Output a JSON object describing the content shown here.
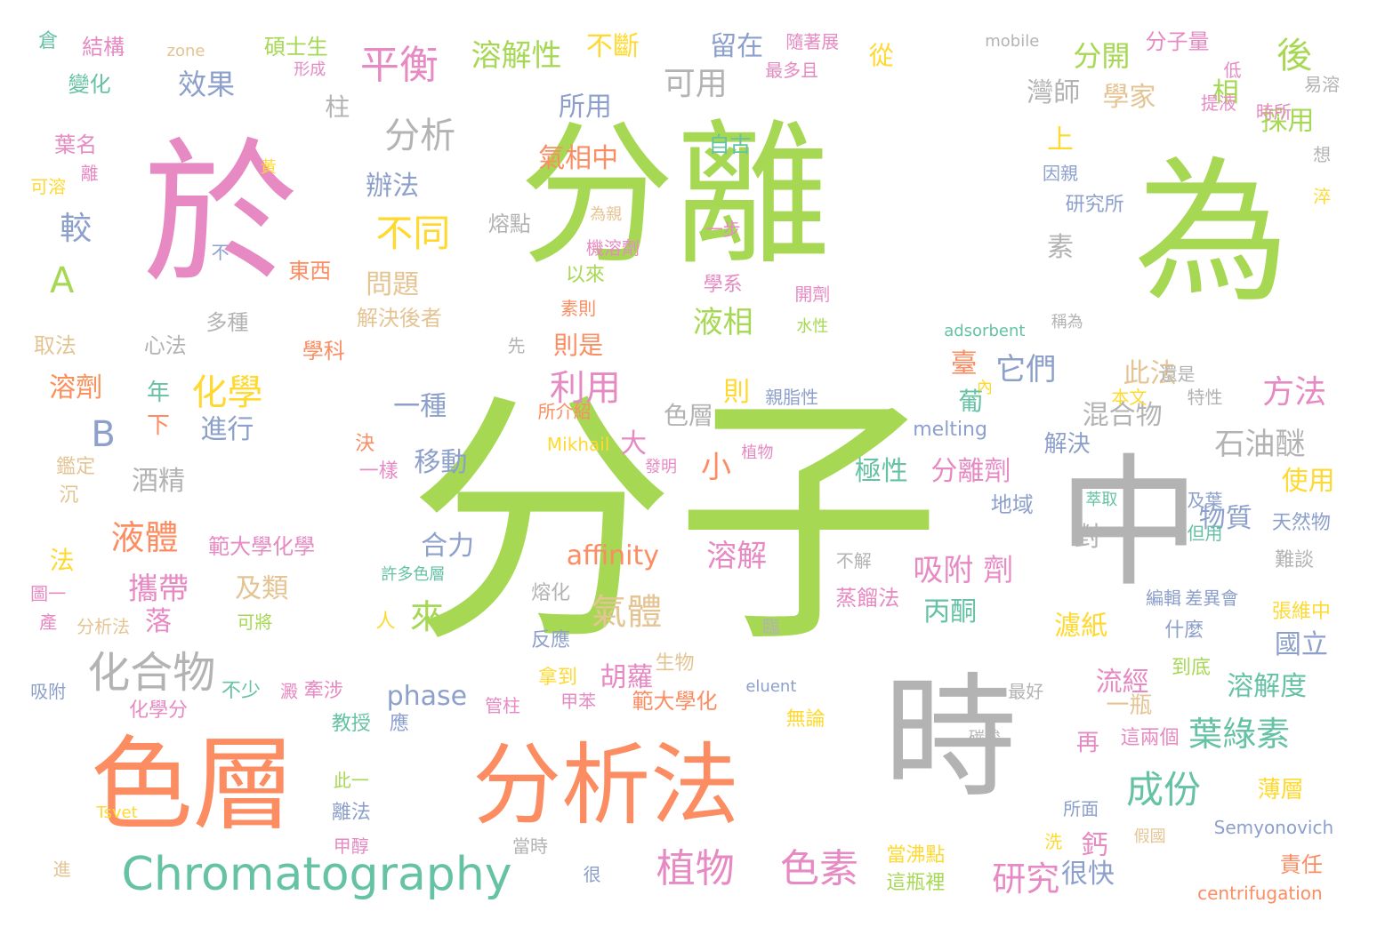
{
  "cloud": {
    "palette": {
      "green": "#a6d854",
      "pink": "#e78ac3",
      "orange": "#fc8d62",
      "gray": "#b3b3b3",
      "teal": "#66c2a5",
      "blue": "#8da0cb",
      "yellow": "#ffd92f",
      "tan": "#e5c494"
    },
    "words": [
      {
        "text": "分子",
        "color": "green"
      },
      {
        "text": "分離",
        "color": "green"
      },
      {
        "text": "於",
        "color": "pink"
      },
      {
        "text": "為",
        "color": "green"
      },
      {
        "text": "中",
        "color": "gray"
      },
      {
        "text": "時",
        "color": "gray"
      },
      {
        "text": "色層",
        "color": "orange"
      },
      {
        "text": "分析法",
        "color": "orange"
      },
      {
        "text": "Chromatography",
        "color": "teal"
      },
      {
        "text": "平衡",
        "color": "pink"
      },
      {
        "text": "溶解性",
        "color": "green"
      },
      {
        "text": "不斷",
        "color": "yellow"
      },
      {
        "text": "留在",
        "color": "blue"
      },
      {
        "text": "分析",
        "color": "gray"
      },
      {
        "text": "效果",
        "color": "blue"
      },
      {
        "text": "可用",
        "color": "gray"
      },
      {
        "text": "所用",
        "color": "blue"
      },
      {
        "text": "後",
        "color": "green"
      },
      {
        "text": "分開",
        "color": "green"
      },
      {
        "text": "分子量",
        "color": "pink"
      },
      {
        "text": "學家",
        "color": "tan"
      },
      {
        "text": "灣師",
        "color": "gray"
      },
      {
        "text": "相",
        "color": "green"
      },
      {
        "text": "採用",
        "color": "green"
      },
      {
        "text": "不同",
        "color": "yellow"
      },
      {
        "text": "較",
        "color": "blue"
      },
      {
        "text": "A",
        "color": "green"
      },
      {
        "text": "化學",
        "color": "yellow"
      },
      {
        "text": "B",
        "color": "blue"
      },
      {
        "text": "辦法",
        "color": "blue"
      },
      {
        "text": "氣相中",
        "color": "orange"
      },
      {
        "text": "利用",
        "color": "pink"
      },
      {
        "text": "液相",
        "color": "green"
      },
      {
        "text": "則是",
        "color": "orange"
      },
      {
        "text": "問題",
        "color": "tan"
      },
      {
        "text": "解決後者",
        "color": "tan"
      },
      {
        "text": "它們",
        "color": "blue"
      },
      {
        "text": "此法",
        "color": "tan"
      },
      {
        "text": "方法",
        "color": "pink"
      },
      {
        "text": "混合物",
        "color": "gray"
      },
      {
        "text": "石油醚",
        "color": "gray"
      },
      {
        "text": "色層",
        "color": "gray"
      },
      {
        "text": "液體",
        "color": "orange"
      },
      {
        "text": "攜帶",
        "color": "pink"
      },
      {
        "text": "酒精",
        "color": "gray"
      },
      {
        "text": "化合物",
        "color": "gray"
      },
      {
        "text": "氣體",
        "color": "tan"
      },
      {
        "text": "移動",
        "color": "blue"
      },
      {
        "text": "一種",
        "color": "blue"
      },
      {
        "text": "進行",
        "color": "blue"
      },
      {
        "text": "年",
        "color": "teal"
      },
      {
        "text": "下",
        "color": "orange"
      },
      {
        "text": "溶劑",
        "color": "yellow"
      },
      {
        "text": "合力",
        "color": "blue"
      },
      {
        "text": "affinity",
        "color": "orange"
      },
      {
        "text": "溶解",
        "color": "pink"
      },
      {
        "text": "吸附",
        "color": "pink"
      },
      {
        "text": "劑",
        "color": "pink"
      },
      {
        "text": "丙酮",
        "color": "teal"
      },
      {
        "text": "濾紙",
        "color": "yellow"
      },
      {
        "text": "分離劑",
        "color": "pink"
      },
      {
        "text": "極性",
        "color": "teal"
      },
      {
        "text": "物質",
        "color": "blue"
      },
      {
        "text": "使用",
        "color": "yellow"
      },
      {
        "text": "葉綠素",
        "color": "teal"
      },
      {
        "text": "成份",
        "color": "teal"
      },
      {
        "text": "溶解度",
        "color": "teal"
      },
      {
        "text": "國立",
        "color": "blue"
      },
      {
        "text": "植物",
        "color": "pink"
      },
      {
        "text": "色素",
        "color": "pink"
      },
      {
        "text": "研究",
        "color": "pink"
      },
      {
        "text": "胡蘿",
        "color": "pink"
      },
      {
        "text": "phase",
        "color": "blue"
      },
      {
        "text": "流經",
        "color": "pink"
      },
      {
        "text": "一瓶",
        "color": "tan"
      },
      {
        "text": "來",
        "color": "green"
      },
      {
        "text": "及類",
        "color": "tan"
      },
      {
        "text": "小",
        "color": "orange"
      },
      {
        "text": "大",
        "color": "pink"
      },
      {
        "text": "很快",
        "color": "blue"
      },
      {
        "text": "上",
        "color": "yellow"
      },
      {
        "text": "素",
        "color": "gray"
      },
      {
        "text": "臺",
        "color": "orange"
      },
      {
        "text": "則",
        "color": "yellow"
      },
      {
        "text": "melting",
        "color": "blue"
      },
      {
        "text": "解決",
        "color": "blue"
      },
      {
        "text": "薄層",
        "color": "yellow"
      },
      {
        "text": "責任",
        "color": "orange"
      },
      {
        "text": "centrifugation",
        "color": "orange"
      },
      {
        "text": "Semyonovich",
        "color": "blue"
      },
      {
        "text": "天然物",
        "color": "blue"
      },
      {
        "text": "張維中",
        "color": "yellow"
      },
      {
        "text": "蒸餾法",
        "color": "pink"
      },
      {
        "text": "範大學化學",
        "color": "pink"
      },
      {
        "text": "範大學化",
        "color": "orange"
      },
      {
        "text": "Mikhail",
        "color": "yellow"
      },
      {
        "text": "adsorbent",
        "color": "teal"
      },
      {
        "text": "eluent",
        "color": "blue"
      },
      {
        "text": "mobile",
        "color": "gray"
      },
      {
        "text": "zone",
        "color": "tan"
      },
      {
        "text": "Tsvet",
        "color": "yellow"
      },
      {
        "text": "結構",
        "color": "pink"
      },
      {
        "text": "碩士生",
        "color": "green"
      },
      {
        "text": "變化",
        "color": "teal"
      },
      {
        "text": "形成",
        "color": "pink"
      },
      {
        "text": "倉",
        "color": "teal"
      },
      {
        "text": "柱",
        "color": "gray"
      },
      {
        "text": "葉名",
        "color": "pink"
      },
      {
        "text": "離",
        "color": "pink"
      },
      {
        "text": "可溶",
        "color": "yellow"
      },
      {
        "text": "黃",
        "color": "yellow"
      },
      {
        "text": "自古",
        "color": "teal"
      },
      {
        "text": "從",
        "color": "yellow"
      },
      {
        "text": "最多且",
        "color": "pink"
      },
      {
        "text": "隨著展",
        "color": "pink"
      },
      {
        "text": "低",
        "color": "pink"
      },
      {
        "text": "提液",
        "color": "pink"
      },
      {
        "text": "時所",
        "color": "pink"
      },
      {
        "text": "易溶",
        "color": "gray"
      },
      {
        "text": "想",
        "color": "gray"
      },
      {
        "text": "淬",
        "color": "yellow"
      },
      {
        "text": "因親",
        "color": "blue"
      },
      {
        "text": "研究所",
        "color": "blue"
      },
      {
        "text": "熔點",
        "color": "gray"
      },
      {
        "text": "為親",
        "color": "tan"
      },
      {
        "text": "機溶劑",
        "color": "pink"
      },
      {
        "text": "一步",
        "color": "pink"
      },
      {
        "text": "東西",
        "color": "orange"
      },
      {
        "text": "不",
        "color": "blue"
      },
      {
        "text": "以來",
        "color": "green"
      },
      {
        "text": "學系",
        "color": "pink"
      },
      {
        "text": "開劑",
        "color": "pink"
      },
      {
        "text": "素則",
        "color": "orange"
      },
      {
        "text": "水性",
        "color": "green"
      },
      {
        "text": "稱為",
        "color": "gray"
      },
      {
        "text": "多種",
        "color": "gray"
      },
      {
        "text": "取法",
        "color": "tan"
      },
      {
        "text": "心法",
        "color": "gray"
      },
      {
        "text": "學科",
        "color": "orange"
      },
      {
        "text": "先",
        "color": "gray"
      },
      {
        "text": "溶劑",
        "color": "orange"
      },
      {
        "text": "親脂性",
        "color": "blue"
      },
      {
        "text": "內",
        "color": "yellow"
      },
      {
        "text": "本文",
        "color": "yellow"
      },
      {
        "text": "還是",
        "color": "gray"
      },
      {
        "text": "特性",
        "color": "gray"
      },
      {
        "text": "所介紹",
        "color": "orange"
      },
      {
        "text": "決",
        "color": "orange"
      },
      {
        "text": "一樣",
        "color": "pink"
      },
      {
        "text": "發明",
        "color": "pink"
      },
      {
        "text": "植物",
        "color": "pink"
      },
      {
        "text": "鑑定",
        "color": "tan"
      },
      {
        "text": "沉",
        "color": "tan"
      },
      {
        "text": "法",
        "color": "yellow"
      },
      {
        "text": "許多色層",
        "color": "teal"
      },
      {
        "text": "圖一",
        "color": "pink"
      },
      {
        "text": "產",
        "color": "pink"
      },
      {
        "text": "分析法",
        "color": "tan"
      },
      {
        "text": "可將",
        "color": "green"
      },
      {
        "text": "熔化",
        "color": "gray"
      },
      {
        "text": "人",
        "color": "yellow"
      },
      {
        "text": "落",
        "color": "pink"
      },
      {
        "text": "反應",
        "color": "blue"
      },
      {
        "text": "生物",
        "color": "tan"
      },
      {
        "text": "拿到",
        "color": "yellow"
      },
      {
        "text": "甲苯",
        "color": "pink"
      },
      {
        "text": "不少",
        "color": "teal"
      },
      {
        "text": "澱",
        "color": "pink"
      },
      {
        "text": "牽涉",
        "color": "pink"
      },
      {
        "text": "化學分",
        "color": "pink"
      },
      {
        "text": "管柱",
        "color": "pink"
      },
      {
        "text": "吸附",
        "color": "blue"
      },
      {
        "text": "教授",
        "color": "teal"
      },
      {
        "text": "應",
        "color": "blue"
      },
      {
        "text": "無論",
        "color": "yellow"
      },
      {
        "text": "再",
        "color": "pink"
      },
      {
        "text": "這兩個",
        "color": "pink"
      },
      {
        "text": "碳酸",
        "color": "gray"
      },
      {
        "text": "最好",
        "color": "gray"
      },
      {
        "text": "到底",
        "color": "green"
      },
      {
        "text": "什麼",
        "color": "blue"
      },
      {
        "text": "差異會",
        "color": "blue"
      },
      {
        "text": "難談",
        "color": "gray"
      },
      {
        "text": "但用",
        "color": "teal"
      },
      {
        "text": "及葉",
        "color": "blue"
      },
      {
        "text": "萃取",
        "color": "teal"
      },
      {
        "text": "地域",
        "color": "blue"
      },
      {
        "text": "對",
        "color": "gray"
      },
      {
        "text": "臨",
        "color": "gray"
      },
      {
        "text": "不解",
        "color": "gray"
      },
      {
        "text": "編輯",
        "color": "blue"
      },
      {
        "text": "此一",
        "color": "green"
      },
      {
        "text": "離法",
        "color": "blue"
      },
      {
        "text": "甲醇",
        "color": "pink"
      },
      {
        "text": "進",
        "color": "tan"
      },
      {
        "text": "當時",
        "color": "gray"
      },
      {
        "text": "很",
        "color": "blue"
      },
      {
        "text": "當沸點",
        "color": "yellow"
      },
      {
        "text": "這瓶裡",
        "color": "green"
      },
      {
        "text": "洗",
        "color": "yellow"
      },
      {
        "text": "所面",
        "color": "blue"
      },
      {
        "text": "假國",
        "color": "tan"
      },
      {
        "text": "鈣",
        "color": "pink"
      },
      {
        "text": "葡",
        "color": "teal"
      }
    ]
  }
}
